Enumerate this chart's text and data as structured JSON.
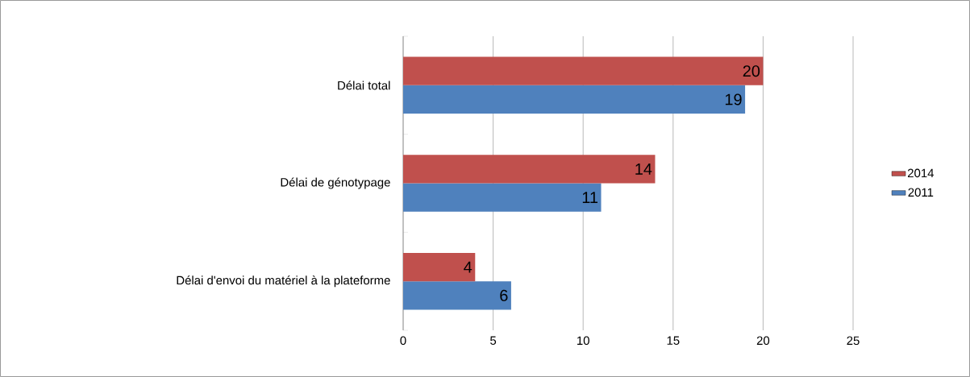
{
  "chart_data": {
    "type": "bar",
    "orientation": "horizontal",
    "categories": [
      "Délai total",
      "Délai de génotypage",
      "Délai d'envoi du matériel à la plateforme"
    ],
    "series": [
      {
        "name": "2011",
        "color": "#4f81bd",
        "values": [
          19,
          11,
          6
        ]
      },
      {
        "name": "2014",
        "color": "#c0504d",
        "values": [
          20,
          14,
          4
        ]
      }
    ],
    "xlim": [
      0,
      25
    ],
    "xticks": [
      0,
      5,
      10,
      15,
      20,
      25
    ],
    "grid": "x",
    "legend": "right",
    "data_labels": true
  }
}
